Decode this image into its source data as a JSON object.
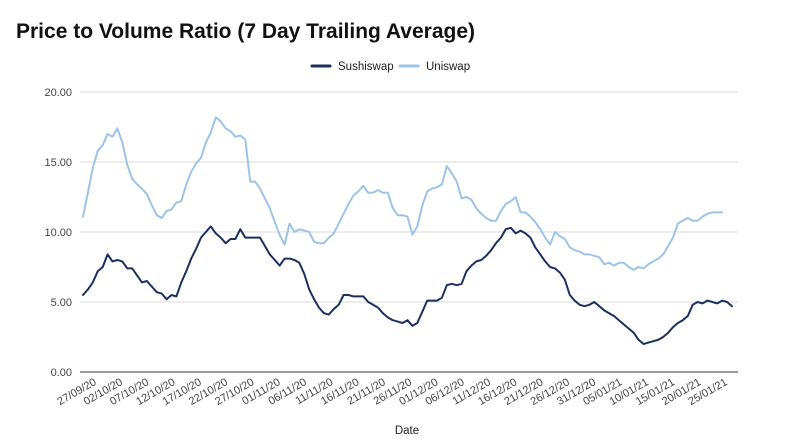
{
  "chart_data": {
    "type": "line",
    "title": "Price to Volume Ratio (7 Day Trailing Average)",
    "xlabel": "Date",
    "ylabel": "",
    "ylim": [
      0,
      20
    ],
    "yticks": [
      "0.00",
      "5.00",
      "10.00",
      "15.00",
      "20.00"
    ],
    "grid": true,
    "legend_position": "top-center",
    "x_tick_labels": [
      "27/09/20",
      "02/10/20",
      "07/10/20",
      "12/10/20",
      "17/10/20",
      "22/10/20",
      "27/10/20",
      "01/11/20",
      "06/11/20",
      "11/11/20",
      "16/11/20",
      "21/11/20",
      "26/11/20",
      "01/12/20",
      "06/12/20",
      "11/12/20",
      "16/12/20",
      "21/12/20",
      "26/12/20",
      "31/12/20",
      "05/01/21",
      "10/01/21",
      "15/01/21",
      "20/01/21",
      "25/01/21"
    ],
    "series": [
      {
        "name": "Sushiswap",
        "color": "#1c2f5e",
        "values": [
          5.5,
          5.9,
          6.4,
          7.2,
          7.5,
          8.4,
          7.9,
          8.0,
          7.9,
          7.4,
          7.4,
          6.9,
          6.4,
          6.5,
          6.1,
          5.7,
          5.6,
          5.2,
          5.5,
          5.4,
          6.4,
          7.2,
          8.1,
          8.8,
          9.6,
          10.0,
          10.4,
          9.9,
          9.6,
          9.2,
          9.5,
          9.5,
          10.2,
          9.6,
          9.6,
          9.6,
          9.6,
          9.0,
          8.4,
          8.0,
          7.6,
          8.1,
          8.1,
          8.0,
          7.8,
          7.0,
          5.9,
          5.2,
          4.6,
          4.2,
          4.1,
          4.5,
          4.8,
          5.5,
          5.5,
          5.4,
          5.4,
          5.4,
          5.0,
          4.8,
          4.6,
          4.2,
          3.9,
          3.7,
          3.6,
          3.5,
          3.7,
          3.3,
          3.5,
          4.3,
          5.1,
          5.1,
          5.1,
          5.3,
          6.2,
          6.3,
          6.2,
          6.3,
          7.2,
          7.6,
          7.9,
          8.0,
          8.3,
          8.7,
          9.2,
          9.6,
          10.2,
          10.3,
          9.9,
          10.1,
          9.9,
          9.6,
          8.9,
          8.4,
          7.9,
          7.5,
          7.4,
          7.1,
          6.6,
          5.5,
          5.1,
          4.8,
          4.7,
          4.8,
          5.0,
          4.7,
          4.4,
          4.2,
          4.0,
          3.7,
          3.4,
          3.1,
          2.8,
          2.3,
          2.0,
          2.1,
          2.2,
          2.3,
          2.5,
          2.8,
          3.2,
          3.5,
          3.7,
          4.0,
          4.8,
          5.0,
          4.9,
          5.1,
          5.0,
          4.9,
          5.1,
          5.0,
          4.7
        ]
      },
      {
        "name": "Uniswap",
        "color": "#9ec3e6",
        "values": [
          11.1,
          12.8,
          14.6,
          15.8,
          16.2,
          17.0,
          16.8,
          17.4,
          16.4,
          14.8,
          13.8,
          13.4,
          13.1,
          12.7,
          11.9,
          11.2,
          11.0,
          11.5,
          11.6,
          12.1,
          12.2,
          13.4,
          14.3,
          14.9,
          15.3,
          16.4,
          17.1,
          18.2,
          17.9,
          17.4,
          17.2,
          16.8,
          16.9,
          16.6,
          13.6,
          13.6,
          13.1,
          12.4,
          11.7,
          10.7,
          9.8,
          9.1,
          10.6,
          10.0,
          10.2,
          10.1,
          10.0,
          9.3,
          9.2,
          9.2,
          9.6,
          9.9,
          10.6,
          11.3,
          12.0,
          12.6,
          12.9,
          13.3,
          12.8,
          12.8,
          13.0,
          12.8,
          12.8,
          11.7,
          11.2,
          11.2,
          11.1,
          9.8,
          10.4,
          11.9,
          12.9,
          13.1,
          13.2,
          13.4,
          14.7,
          14.2,
          13.6,
          12.4,
          12.5,
          12.3,
          11.7,
          11.3,
          11.0,
          10.8,
          10.8,
          11.5,
          12.0,
          12.2,
          12.5,
          11.4,
          11.4,
          11.1,
          10.7,
          10.2,
          9.6,
          9.1,
          10.0,
          9.7,
          9.5,
          8.9,
          8.7,
          8.6,
          8.4,
          8.4,
          8.3,
          8.2,
          7.7,
          7.8,
          7.6,
          7.8,
          7.8,
          7.5,
          7.3,
          7.5,
          7.4,
          7.7,
          7.9,
          8.1,
          8.4,
          9.0,
          9.6,
          10.6,
          10.8,
          11.0,
          10.8,
          10.8,
          11.1,
          11.3,
          11.4,
          11.4,
          11.4
        ]
      }
    ]
  }
}
